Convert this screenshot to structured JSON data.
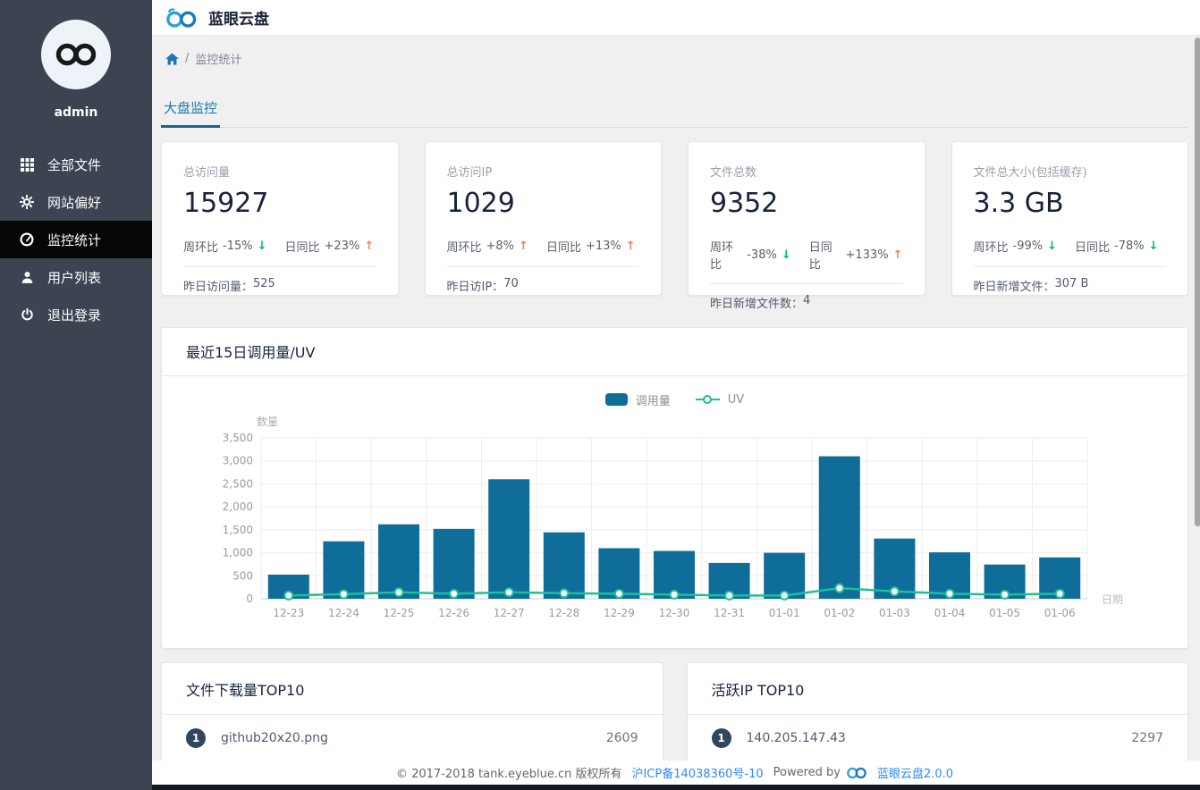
{
  "app": {
    "title": "蓝眼云盘"
  },
  "sidebar": {
    "username": "admin",
    "items": [
      {
        "label": "全部文件",
        "icon": "grid-icon",
        "active": false
      },
      {
        "label": "网站偏好",
        "icon": "gear-icon",
        "active": false
      },
      {
        "label": "监控统计",
        "icon": "dashboard-icon",
        "active": true
      },
      {
        "label": "用户列表",
        "icon": "user-icon",
        "active": false
      },
      {
        "label": "退出登录",
        "icon": "power-icon",
        "active": false
      }
    ]
  },
  "breadcrumb": {
    "separator": "/",
    "current": "监控统计"
  },
  "tabs": [
    {
      "label": "大盘监控",
      "active": true
    }
  ],
  "stat_cards": [
    {
      "label": "总访问量",
      "value": "15927",
      "week_label": "周环比",
      "week": "-15%",
      "week_dir": "down",
      "day_label": "日同比",
      "day": "+23%",
      "day_dir": "up",
      "footer_label": "昨日访问量：",
      "footer_value": "525"
    },
    {
      "label": "总访问IP",
      "value": "1029",
      "week_label": "周环比",
      "week": "+8%",
      "week_dir": "up",
      "day_label": "日同比",
      "day": "+13%",
      "day_dir": "up",
      "footer_label": "昨日访IP：",
      "footer_value": "70"
    },
    {
      "label": "文件总数",
      "value": "9352",
      "week_label": "周环比",
      "week": "-38%",
      "week_dir": "down",
      "day_label": "日同比",
      "day": "+133%",
      "day_dir": "up",
      "footer_label": "昨日新增文件数：",
      "footer_value": "4"
    },
    {
      "label": "文件总大小(包括缓存)",
      "value": "3.3 GB",
      "week_label": "周环比",
      "week": "-99%",
      "week_dir": "down",
      "day_label": "日同比",
      "day": "-78%",
      "day_dir": "down",
      "footer_label": "昨日新增文件：",
      "footer_value": "307 B"
    }
  ],
  "chart_card": {
    "title": "最近15日调用量/UV"
  },
  "chart_data": {
    "type": "bar",
    "categories": [
      "12-23",
      "12-24",
      "12-25",
      "12-26",
      "12-27",
      "12-28",
      "12-29",
      "12-30",
      "12-31",
      "01-01",
      "01-02",
      "01-03",
      "01-04",
      "01-05",
      "01-06"
    ],
    "series": [
      {
        "name": "调用量",
        "type": "bar",
        "color": "#0e6d99",
        "values": [
          525,
          1250,
          1620,
          1520,
          2600,
          1445,
          1100,
          1040,
          780,
          1000,
          3100,
          1310,
          1010,
          745,
          900
        ]
      },
      {
        "name": "UV",
        "type": "line",
        "color": "#1dbf9a",
        "values": [
          70,
          100,
          140,
          110,
          140,
          120,
          110,
          90,
          70,
          70,
          230,
          160,
          110,
          90,
          110
        ]
      }
    ],
    "title": "最近15日调用量/UV",
    "xlabel": "日期",
    "ylabel": "数量",
    "ylim": [
      0,
      3500
    ],
    "yticks": [
      0,
      500,
      1000,
      1500,
      2000,
      2500,
      3000,
      3500
    ],
    "grid": true,
    "legend_position": "top-center"
  },
  "top_lists": [
    {
      "title": "文件下载量TOP10",
      "rows": [
        {
          "rank": "1",
          "name": "github20x20.png",
          "value": "2609"
        }
      ]
    },
    {
      "title": "活跃IP TOP10",
      "rows": [
        {
          "rank": "1",
          "name": "140.205.147.43",
          "value": "2297"
        }
      ]
    }
  ],
  "footer": {
    "copyright": "© 2017-2018 tank.eyeblue.cn 版权所有",
    "icp": "沪ICP备14038360号-10",
    "powered_by": "Powered by",
    "brand": "蓝眼云盘2.0.0"
  },
  "colors": {
    "accent_blue": "#2077b2",
    "bar_blue": "#0e6d99",
    "line_teal": "#1dbf9a",
    "up_orange": "#f57f58",
    "down_green": "#00b877",
    "sidebar_bg": "#3b4450",
    "active_item_bg": "#060606",
    "badge_bg": "#31455c",
    "link_blue": "#2d8cf0"
  }
}
